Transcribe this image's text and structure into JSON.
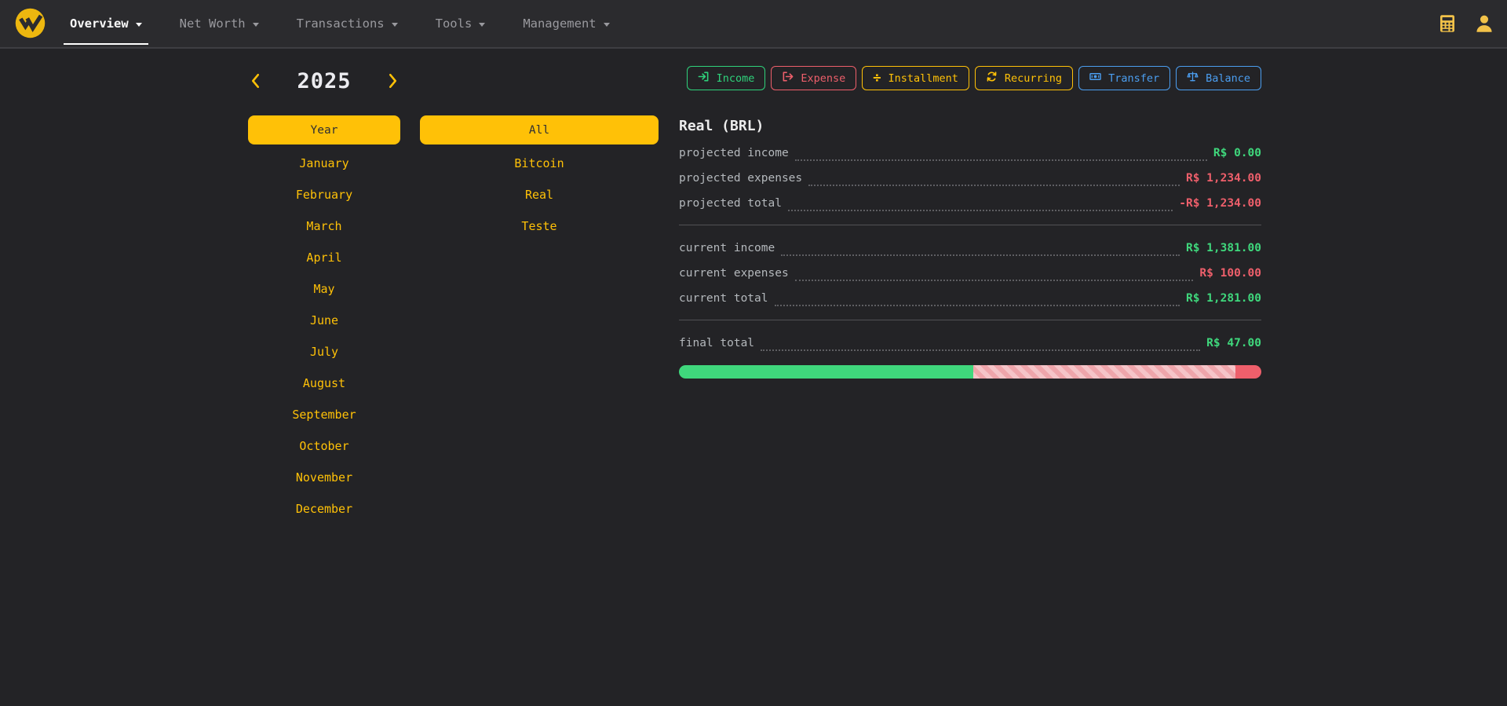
{
  "navbar": {
    "brand_icon": "brand-coin-logo",
    "items": [
      {
        "label": "Overview",
        "active": true
      },
      {
        "label": "Net Worth",
        "active": false
      },
      {
        "label": "Transactions",
        "active": false
      },
      {
        "label": "Tools",
        "active": false
      },
      {
        "label": "Management",
        "active": false
      }
    ],
    "right_icons": [
      "calculator-icon",
      "user-icon"
    ]
  },
  "period": {
    "year": "2025",
    "year_button": "Year",
    "months": [
      "January",
      "February",
      "March",
      "April",
      "May",
      "June",
      "July",
      "August",
      "September",
      "October",
      "November",
      "December"
    ]
  },
  "accounts": {
    "all_button": "All",
    "items": [
      "Bitcoin",
      "Real",
      "Teste"
    ]
  },
  "actions": [
    {
      "label": "Income",
      "icon": "sign-in-icon",
      "color": "#2fd27b"
    },
    {
      "label": "Expense",
      "icon": "sign-out-icon",
      "color": "#ee5f6b"
    },
    {
      "label": "Installment",
      "icon": "divide-icon",
      "color": "#ffc107"
    },
    {
      "label": "Recurring",
      "icon": "repeat-icon",
      "color": "#ffc107"
    },
    {
      "label": "Transfer",
      "icon": "cash-icon",
      "color": "#4b9ef0"
    },
    {
      "label": "Balance",
      "icon": "scale-icon",
      "color": "#4b9ef0"
    }
  ],
  "summary": {
    "title": "Real (BRL)",
    "projected": [
      {
        "label": "projected income",
        "value": "R$ 0.00",
        "tone": "positive"
      },
      {
        "label": "projected expenses",
        "value": "R$ 1,234.00",
        "tone": "negative"
      },
      {
        "label": "projected total",
        "value": "-R$ 1,234.00",
        "tone": "negative"
      }
    ],
    "current": [
      {
        "label": "current income",
        "value": "R$ 1,381.00",
        "tone": "positive"
      },
      {
        "label": "current expenses",
        "value": "R$ 100.00",
        "tone": "negative"
      },
      {
        "label": "current total",
        "value": "R$ 1,281.00",
        "tone": "positive"
      }
    ],
    "final": {
      "label": "final total",
      "value": "R$ 47.00",
      "tone": "positive"
    },
    "progress": {
      "segments": [
        {
          "name": "income",
          "pct": 50.6,
          "style": "solid-green",
          "color": "#3fd77c"
        },
        {
          "name": "projected-expense",
          "pct": 45.0,
          "style": "striped-pink",
          "color": "#efa5ab"
        },
        {
          "name": "current-expense",
          "pct": 4.4,
          "style": "solid-red",
          "color": "#ee5f6b"
        }
      ]
    }
  },
  "colors": {
    "page_bg": "#232326",
    "navbar_bg": "#2b2b2e",
    "accent_yellow": "#ffc107",
    "positive_green": "#3fd77c",
    "negative_red": "#ee5f6b",
    "info_blue": "#4b9ef0"
  }
}
